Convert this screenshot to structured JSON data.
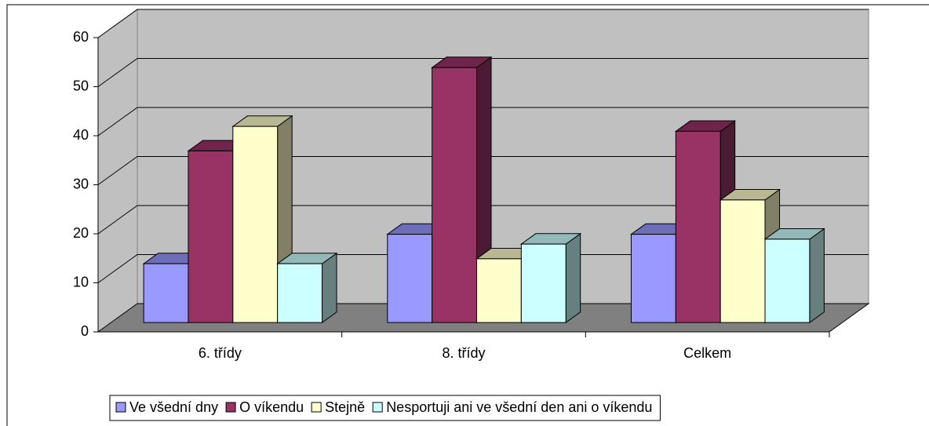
{
  "chart_data": {
    "type": "bar3d",
    "categories": [
      "6. třídy",
      "8. třídy",
      "Celkem"
    ],
    "series": [
      {
        "name": "Ve všední dny",
        "color": "#9999ff",
        "values": [
          12,
          18,
          18
        ]
      },
      {
        "name": "O víkendu",
        "color": "#993366",
        "values": [
          35,
          52,
          39
        ]
      },
      {
        "name": "Stejně",
        "color": "#ffffcc",
        "values": [
          40,
          13,
          25
        ]
      },
      {
        "name": "Nesportuji ani ve všední den ani o víkendu",
        "color": "#ccffff",
        "values": [
          12,
          16,
          17
        ]
      }
    ],
    "ylim": [
      0,
      60
    ],
    "yticks": [
      0,
      10,
      20,
      30,
      40,
      50,
      60
    ],
    "grid": true,
    "legend": "bottom"
  }
}
